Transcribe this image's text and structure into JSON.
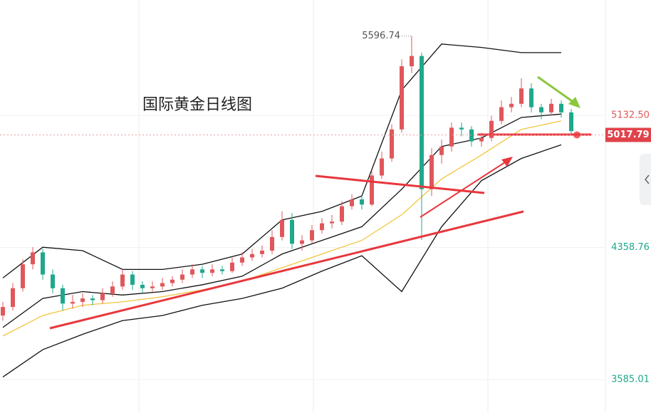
{
  "chart_data": {
    "type": "candlestick",
    "title": "国际黄金日线图",
    "up_color": "#e0575b",
    "down_color": "#1fa88b",
    "ylim": [
      3389,
      5808
    ],
    "yticks": [
      {
        "value": 5132.5,
        "label": "5132.50"
      },
      4358.76,
      3585.01
    ],
    "current_price": 5017.79,
    "candles": [
      [
        3960,
        4040,
        3930,
        4010
      ],
      [
        4010,
        4150,
        3990,
        4120
      ],
      [
        4120,
        4290,
        4100,
        4260
      ],
      [
        4260,
        4360,
        4230,
        4330
      ],
      [
        4330,
        4350,
        4170,
        4200
      ],
      [
        4200,
        4230,
        4090,
        4120
      ],
      [
        4120,
        4140,
        3990,
        4030
      ],
      [
        4030,
        4080,
        4000,
        4040
      ],
      [
        4040,
        4090,
        4010,
        4060
      ],
      [
        4060,
        4080,
        4020,
        4050
      ],
      [
        4050,
        4120,
        4030,
        4090
      ],
      [
        4090,
        4160,
        4070,
        4130
      ],
      [
        4130,
        4230,
        4110,
        4200
      ],
      [
        4200,
        4220,
        4110,
        4140
      ],
      [
        4140,
        4160,
        4090,
        4120
      ],
      [
        4120,
        4160,
        4100,
        4130
      ],
      [
        4130,
        4180,
        4110,
        4150
      ],
      [
        4150,
        4190,
        4130,
        4170
      ],
      [
        4170,
        4230,
        4150,
        4200
      ],
      [
        4200,
        4260,
        4180,
        4230
      ],
      [
        4230,
        4250,
        4180,
        4210
      ],
      [
        4210,
        4260,
        4190,
        4230
      ],
      [
        4230,
        4250,
        4200,
        4220
      ],
      [
        4220,
        4300,
        4210,
        4270
      ],
      [
        4270,
        4330,
        4250,
        4300
      ],
      [
        4300,
        4350,
        4280,
        4320
      ],
      [
        4320,
        4370,
        4300,
        4340
      ],
      [
        4340,
        4460,
        4320,
        4420
      ],
      [
        4420,
        4570,
        4400,
        4520
      ],
      [
        4520,
        4560,
        4350,
        4380
      ],
      [
        4380,
        4430,
        4340,
        4400
      ],
      [
        4400,
        4490,
        4380,
        4460
      ],
      [
        4460,
        4530,
        4440,
        4500
      ],
      [
        4500,
        4550,
        4470,
        4510
      ],
      [
        4510,
        4630,
        4490,
        4600
      ],
      [
        4600,
        4670,
        4580,
        4640
      ],
      [
        4640,
        4660,
        4580,
        4610
      ],
      [
        4610,
        4810,
        4600,
        4780
      ],
      [
        4780,
        4920,
        4760,
        4880
      ],
      [
        4880,
        5080,
        4860,
        5050
      ],
      [
        5050,
        5460,
        5030,
        5420
      ],
      [
        5420,
        5596.74,
        5380,
        5480
      ],
      [
        5480,
        5500,
        4402,
        4700
      ],
      [
        4700,
        4940,
        4660,
        4900
      ],
      [
        4900,
        4990,
        4850,
        4950
      ],
      [
        4950,
        5090,
        4920,
        5060
      ],
      [
        5060,
        5090,
        5010,
        5050
      ],
      [
        5050,
        5070,
        4950,
        4980
      ],
      [
        4980,
        5030,
        4950,
        5000
      ],
      [
        5000,
        5130,
        4980,
        5100
      ],
      [
        5100,
        5220,
        5080,
        5180
      ],
      [
        5180,
        5240,
        5150,
        5200
      ],
      [
        5200,
        5350,
        5180,
        5290
      ],
      [
        5290,
        5320,
        5150,
        5180
      ],
      [
        5180,
        5200,
        5110,
        5150
      ],
      [
        5150,
        5230,
        5130,
        5200
      ],
      [
        5200,
        5220,
        5120,
        5150
      ],
      [
        5150,
        5170,
        5020,
        5040
      ]
    ],
    "lines": [
      {
        "color": "#111111",
        "x": [
          0,
          4,
          8,
          12,
          16,
          20,
          24,
          28,
          32,
          36,
          40,
          44,
          48,
          52,
          56
        ],
        "values": [
          4180,
          4360,
          4340,
          4230,
          4230,
          4260,
          4320,
          4520,
          4570,
          4660,
          5280,
          5550,
          5530,
          5500,
          5500
        ]
      },
      {
        "color": "#111111",
        "x": [
          0,
          4,
          8,
          12,
          16,
          20,
          24,
          28,
          32,
          36,
          40,
          44,
          48,
          52,
          56
        ],
        "values": [
          3890,
          4060,
          4100,
          4080,
          4100,
          4140,
          4190,
          4320,
          4400,
          4480,
          4700,
          4950,
          5000,
          5120,
          5140
        ]
      },
      {
        "color": "#111111",
        "x": [
          0,
          4,
          8,
          12,
          16,
          20,
          24,
          28,
          32,
          36,
          40,
          44,
          48,
          52,
          56
        ],
        "values": [
          3600,
          3760,
          3850,
          3930,
          3960,
          4020,
          4060,
          4120,
          4220,
          4310,
          4100,
          4480,
          4750,
          4880,
          4960
        ]
      },
      {
        "color": "#f2c53d",
        "x": [
          0,
          4,
          8,
          12,
          16,
          20,
          24,
          28,
          32,
          36,
          40,
          44,
          48,
          52,
          56
        ],
        "values": [
          3840,
          3960,
          4020,
          4040,
          4070,
          4110,
          4160,
          4240,
          4320,
          4400,
          4550,
          4760,
          4900,
          5050,
          5100
        ]
      }
    ]
  }
}
